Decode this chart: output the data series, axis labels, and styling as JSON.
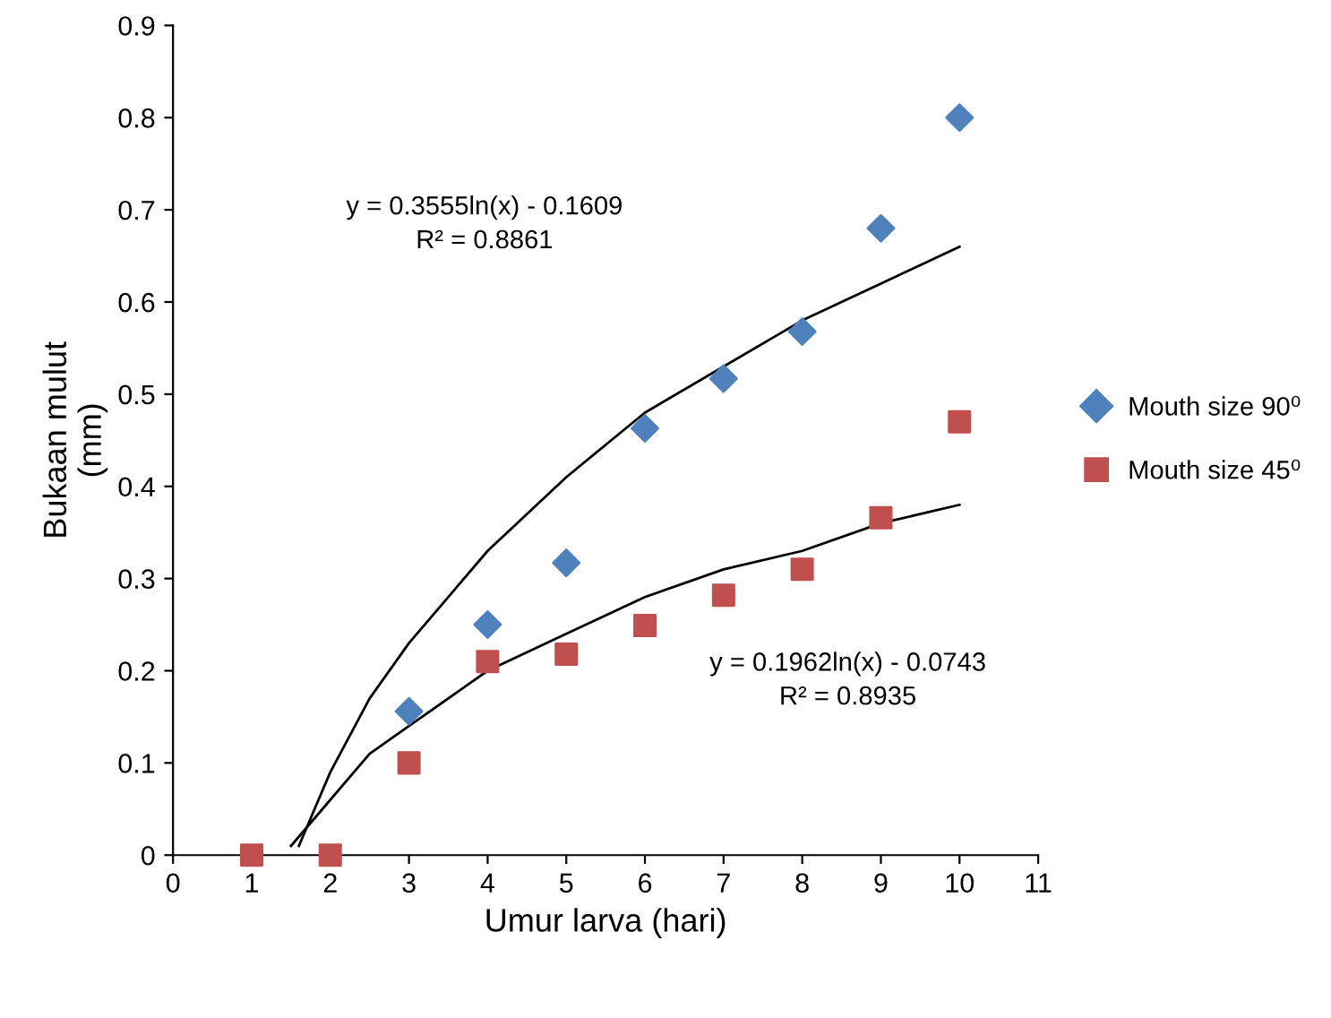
{
  "chart_data": {
    "type": "scatter",
    "xlabel": "Umur larva (hari)",
    "ylabel": "Bukaan mulut\n(mm)",
    "x": [
      1,
      2,
      3,
      4,
      5,
      6,
      7,
      8,
      9,
      10
    ],
    "series": [
      {
        "name": "Mouth size 90⁰",
        "color": "#4f81bd",
        "marker": "diamond",
        "values": [
          null,
          null,
          0.156,
          0.25,
          0.317,
          0.463,
          0.517,
          0.568,
          0.68,
          0.8
        ]
      },
      {
        "name": "Mouth size 45⁰",
        "color": "#c0504d",
        "marker": "square",
        "values": [
          0,
          0,
          0.1,
          0.21,
          0.218,
          0.249,
          0.282,
          0.31,
          0.366,
          0.47
        ]
      },
      {
        "type": "line",
        "color": "#000000",
        "x": [
          1.6,
          2,
          2.5,
          3,
          4,
          5,
          6,
          7,
          8,
          9,
          10
        ],
        "values": [
          0.01,
          0.09,
          0.17,
          0.23,
          0.33,
          0.41,
          0.48,
          0.53,
          0.58,
          0.62,
          0.66
        ]
      },
      {
        "type": "line",
        "color": "#000000",
        "x": [
          1.5,
          2,
          2.5,
          3,
          4,
          5,
          6,
          7,
          8,
          9,
          10
        ],
        "values": [
          0.01,
          0.06,
          0.11,
          0.14,
          0.2,
          0.24,
          0.28,
          0.31,
          0.33,
          0.36,
          0.38
        ]
      }
    ],
    "annotations": [
      "y = 0.3555ln(x) - 0.1609\nR² = 0.8861",
      "y = 0.1962ln(x) - 0.0743\nR² = 0.8935"
    ],
    "xlim": [
      0,
      11
    ],
    "xticks": [
      0,
      1,
      2,
      3,
      4,
      5,
      6,
      7,
      8,
      9,
      10,
      11
    ],
    "ylim": [
      0,
      0.9
    ],
    "yticks": [
      0,
      0.1,
      0.2,
      0.3,
      0.4,
      0.5,
      0.6,
      0.7,
      0.8,
      0.9
    ],
    "grid": false,
    "legend": "right"
  }
}
